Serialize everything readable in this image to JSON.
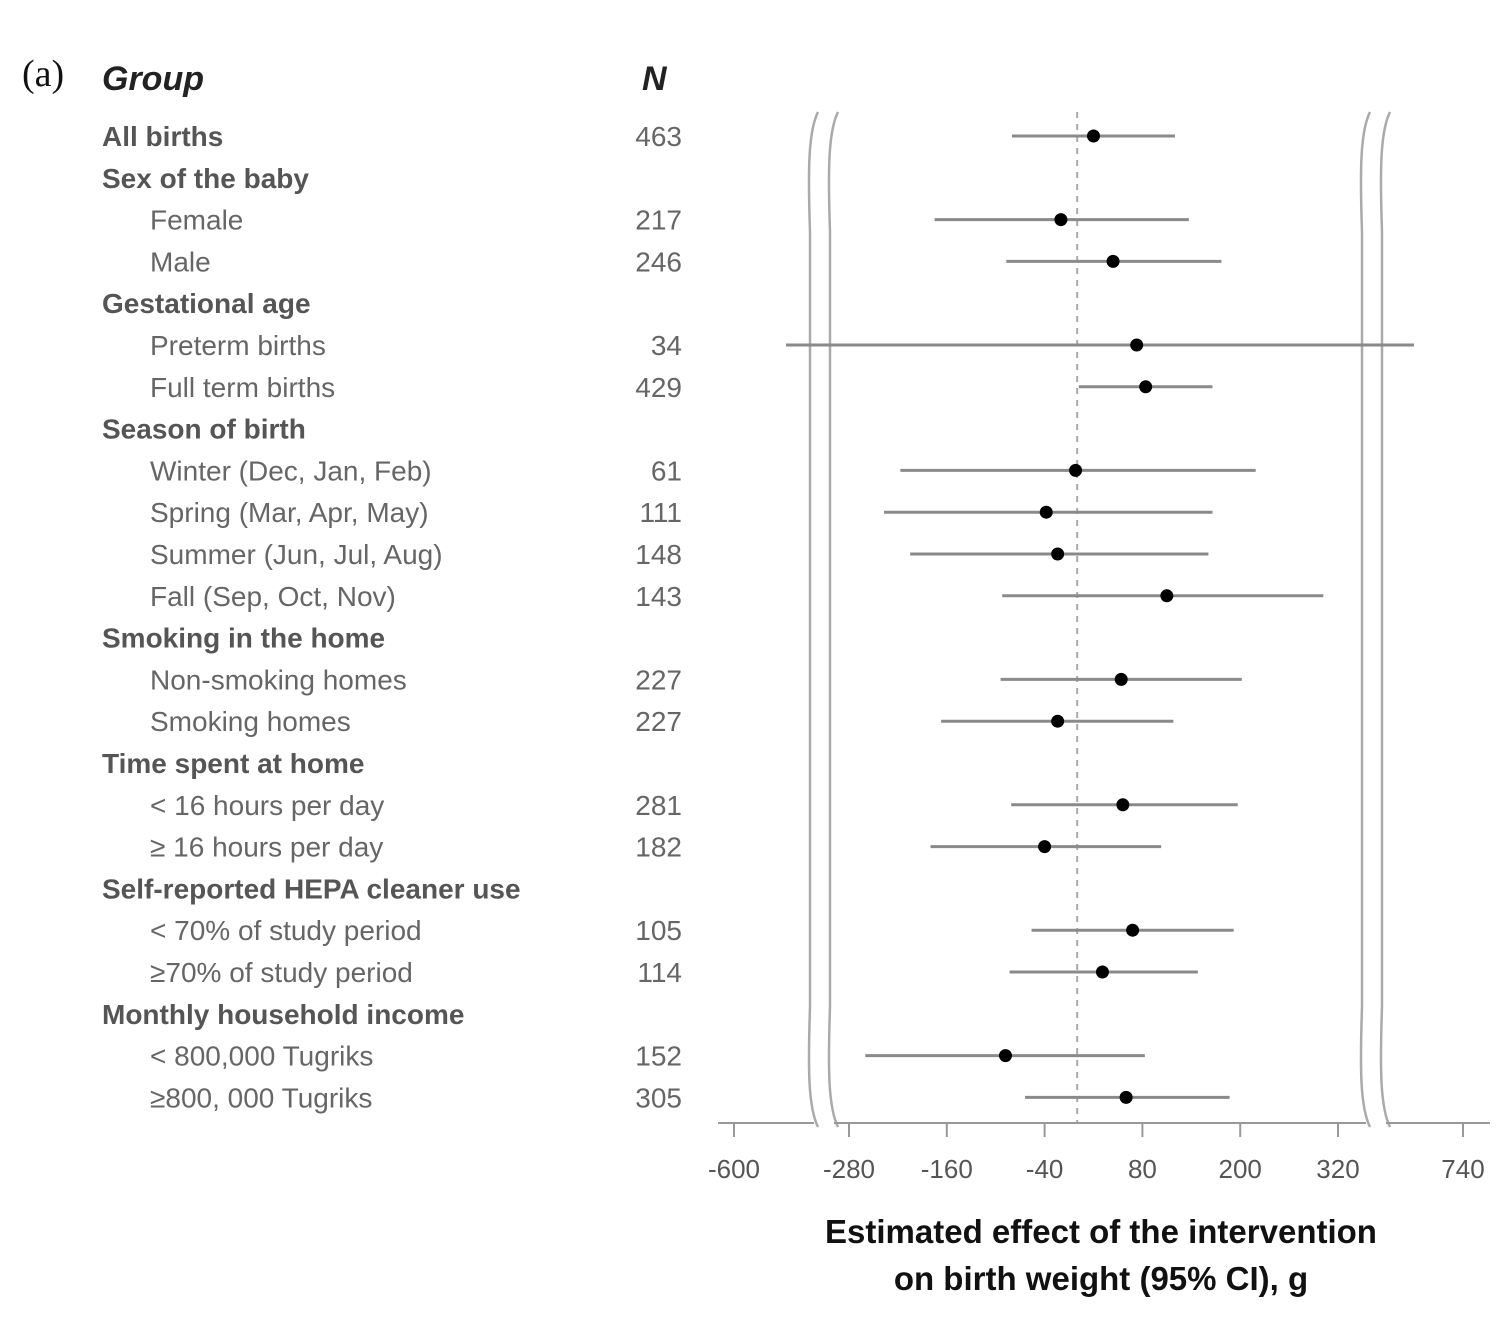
{
  "panel_label": "(a)",
  "headers": {
    "group": "Group",
    "n": "N"
  },
  "chart_data": {
    "type": "forest",
    "xlabel_line1": "Estimated effect of the intervention",
    "xlabel_line2": "on birth weight (95% CI), g",
    "x_ticks": [
      "-600",
      "-280",
      "-160",
      "-40",
      "80",
      "200",
      "320",
      "740"
    ],
    "x_break_left": [
      -600,
      -280
    ],
    "x_break_right": [
      320,
      740
    ],
    "reference_line": 0,
    "rows": [
      {
        "label": "All births",
        "kind": "group",
        "n": "463",
        "est": 20,
        "lo": -80,
        "hi": 120
      },
      {
        "label": "Sex of the baby",
        "kind": "group"
      },
      {
        "label": "Female",
        "kind": "sub",
        "n": "217",
        "est": -20,
        "lo": -175,
        "hi": 137
      },
      {
        "label": "Male",
        "kind": "sub",
        "n": "246",
        "est": 44,
        "lo": -87,
        "hi": 177
      },
      {
        "label": "Gestational age",
        "kind": "group"
      },
      {
        "label": "Preterm births",
        "kind": "sub",
        "n": "34",
        "est": 73,
        "lo": -640,
        "hi": 780
      },
      {
        "label": "Full term births",
        "kind": "sub",
        "n": "429",
        "est": 84,
        "lo": 2,
        "hi": 166
      },
      {
        "label": "Season of birth",
        "kind": "group"
      },
      {
        "label": "Winter (Dec, Jan, Feb)",
        "kind": "sub",
        "n": "61",
        "est": -2,
        "lo": -217,
        "hi": 219
      },
      {
        "label": "Spring (Mar, Apr, May)",
        "kind": "sub",
        "n": "111",
        "est": -38,
        "lo": -237,
        "hi": 166
      },
      {
        "label": "Summer (Jun, Jul, Aug)",
        "kind": "sub",
        "n": "148",
        "est": -24,
        "lo": -205,
        "hi": 161
      },
      {
        "label": "Fall (Sep, Oct, Nov)",
        "kind": "sub",
        "n": "143",
        "est": 110,
        "lo": -92,
        "hi": 302
      },
      {
        "label": "Smoking in the home",
        "kind": "group"
      },
      {
        "label": "Non-smoking homes",
        "kind": "sub",
        "n": "227",
        "est": 54,
        "lo": -94,
        "hi": 202
      },
      {
        "label": "Smoking homes",
        "kind": "sub",
        "n": "227",
        "est": -24,
        "lo": -167,
        "hi": 118
      },
      {
        "label": "Time spent at home",
        "kind": "group"
      },
      {
        "label": "< 16 hours per day",
        "kind": "sub",
        "n": "281",
        "est": 56,
        "lo": -81,
        "hi": 197
      },
      {
        "label": "≥ 16 hours per day",
        "kind": "sub",
        "n": "182",
        "est": -40,
        "lo": -180,
        "hi": 103
      },
      {
        "label": "Self-reported HEPA cleaner use",
        "kind": "group"
      },
      {
        "label": "< 70% of study period",
        "kind": "sub",
        "n": "105",
        "est": 68,
        "lo": -56,
        "hi": 192
      },
      {
        "label": "≥70% of study period",
        "kind": "sub",
        "n": "114",
        "est": 31,
        "lo": -83,
        "hi": 148
      },
      {
        "label": "Monthly household income",
        "kind": "group"
      },
      {
        "label": "< 800,000 Tugriks",
        "kind": "sub",
        "n": "152",
        "est": -88,
        "lo": -260,
        "hi": 83
      },
      {
        "label": "≥800, 000 Tugriks",
        "kind": "sub",
        "n": "305",
        "est": 60,
        "lo": -64,
        "hi": 187
      }
    ]
  }
}
